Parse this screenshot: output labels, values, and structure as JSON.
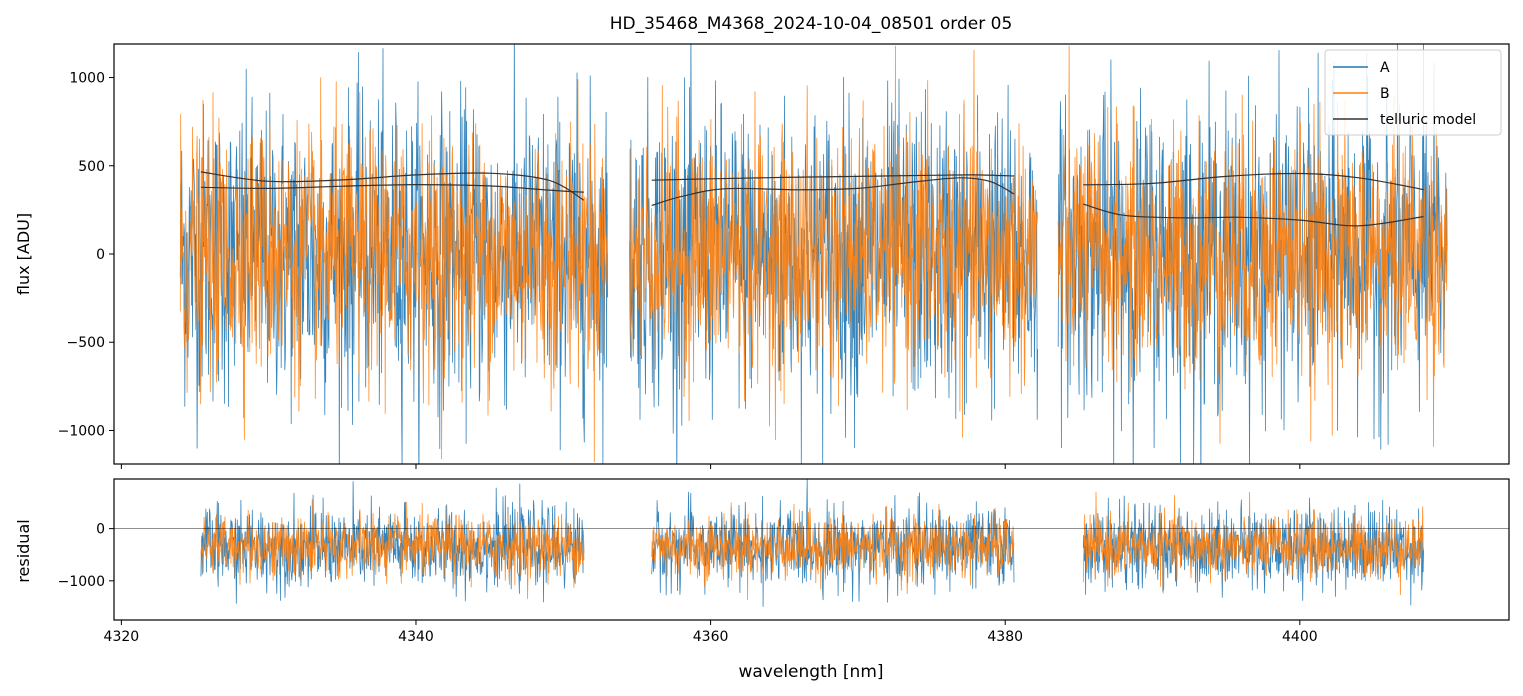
{
  "figure": {
    "title": "HD_35468_M4368_2024-10-04_08501  order 05"
  },
  "chart_data": [
    {
      "type": "line",
      "panel": "flux",
      "ylabel": "flux [ADU]",
      "xlabel": "",
      "xlim": [
        4319.5,
        4414.2
      ],
      "ylim": [
        -1190,
        1190
      ],
      "xticks": [
        4320,
        4340,
        4360,
        4380,
        4400
      ],
      "yticks": [
        -1000,
        -500,
        0,
        500,
        1000
      ],
      "ytick_labels": [
        "−1000",
        "−500",
        "0",
        "500",
        "1000"
      ],
      "grid": false,
      "legend": "upper right",
      "segments": [
        [
          4324.0,
          4353.0
        ],
        [
          4354.5,
          4382.2
        ],
        [
          4383.6,
          4410.0
        ]
      ],
      "noise": {
        "A_sigma": 420,
        "A_max": 1400,
        "B_sigma": 350,
        "B_max": 1180,
        "offset": 0
      },
      "series": [
        {
          "name": "A",
          "color": "#1f77b4",
          "description_values": "noisy spectrum around 0, spanning roughly -1100 to +1190 within each segment"
        },
        {
          "name": "B",
          "color": "#ff7f0e",
          "description_values": "noisy spectrum around 0, spanning roughly -1000 to +1190 within each segment"
        },
        {
          "name": "telluric model",
          "color": "#333333",
          "curves": [
            {
              "x": [
                4325.4,
                4330,
                4335,
                4340,
                4345,
                4349,
                4351.4
              ],
              "y": [
                465,
                412,
                420,
                448,
                458,
                418,
                305
              ]
            },
            {
              "x": [
                4325.4,
                4330,
                4335,
                4340,
                4345,
                4349,
                4351.4
              ],
              "y": [
                378,
                372,
                384,
                393,
                386,
                362,
                350
              ]
            },
            {
              "x": [
                4356.0,
                4360,
                4365,
                4370,
                4375,
                4378,
                4380.6
              ],
              "y": [
                418,
                426,
                434,
                440,
                446,
                448,
                442
              ]
            },
            {
              "x": [
                4356.0,
                4358,
                4361,
                4366,
                4370,
                4374,
                4377,
                4379,
                4380.6
              ],
              "y": [
                275,
                325,
                370,
                364,
                372,
                410,
                432,
                410,
                340
              ]
            },
            {
              "x": [
                4385.3,
                4390,
                4395,
                4400,
                4404,
                4408.4
              ],
              "y": [
                392,
                400,
                440,
                456,
                432,
                365
              ]
            },
            {
              "x": [
                4385.3,
                4388,
                4392,
                4396,
                4400,
                4404,
                4408.4
              ],
              "y": [
                283,
                220,
                205,
                208,
                192,
                160,
                212
              ]
            }
          ]
        }
      ]
    },
    {
      "type": "line",
      "panel": "residual",
      "ylabel": "residual",
      "xlabel": "wavelength [nm]",
      "xlim": [
        4319.5,
        4414.2
      ],
      "ylim": [
        -1750,
        950
      ],
      "xticks": [
        4320,
        4340,
        4360,
        4380,
        4400
      ],
      "xtick_labels": [
        "4320",
        "4340",
        "4360",
        "4380",
        "4400"
      ],
      "yticks": [
        -1000,
        0
      ],
      "ytick_labels": [
        "−1000",
        "0"
      ],
      "zero_line": 0,
      "grid": false,
      "segments": [
        [
          4325.4,
          4351.4
        ],
        [
          4356.0,
          4380.6
        ],
        [
          4385.3,
          4408.4
        ]
      ],
      "noise": {
        "A_sigma": 380,
        "A_max": 1300,
        "B_sigma": 300,
        "B_max": 1050,
        "offset": -350
      },
      "series": [
        {
          "name": "A",
          "color": "#1f77b4",
          "description_values": "noisy residual centered near -350, spanning roughly -1700 to +950"
        },
        {
          "name": "B",
          "color": "#ff7f0e",
          "description_values": "noisy residual centered near -350, spanning roughly -1500 to +900"
        }
      ]
    }
  ]
}
